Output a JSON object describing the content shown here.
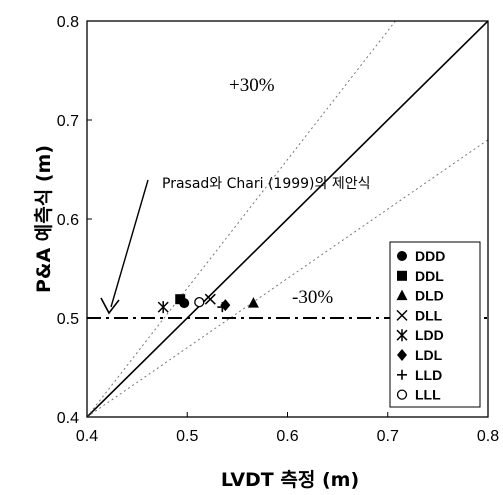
{
  "chart_data": {
    "type": "scatter",
    "xlabel": "LVDT 측정 (m)",
    "ylabel": "P&A 예측식 (m)",
    "xlim": [
      0.4,
      0.8
    ],
    "ylim": [
      0.4,
      0.8
    ],
    "x_ticks": [
      "0.4",
      "0.5",
      "0.6",
      "0.7",
      "0.8"
    ],
    "y_ticks": [
      "0.4",
      "0.5",
      "0.6",
      "0.7",
      "0.8"
    ],
    "grid": false,
    "legend_position": "lower-right",
    "series": [
      {
        "name": "DDD",
        "marker": "circle",
        "points": [
          [
            0.497,
            0.515
          ]
        ]
      },
      {
        "name": "DDL",
        "marker": "square",
        "points": [
          [
            0.493,
            0.519
          ]
        ]
      },
      {
        "name": "DLD",
        "marker": "triangle",
        "points": [
          [
            0.566,
            0.515
          ]
        ]
      },
      {
        "name": "DLL",
        "marker": "x",
        "points": [
          [
            0.523,
            0.519
          ]
        ]
      },
      {
        "name": "LDD",
        "marker": "asterisk",
        "points": [
          [
            0.476,
            0.511
          ]
        ]
      },
      {
        "name": "LDL",
        "marker": "diamond",
        "points": [
          [
            0.538,
            0.513
          ]
        ]
      },
      {
        "name": "LLD",
        "marker": "plus",
        "points": [
          [
            0.535,
            0.511
          ]
        ]
      },
      {
        "name": "LLL",
        "marker": "open-circle",
        "points": [
          [
            0.512,
            0.516
          ]
        ]
      }
    ],
    "reference_lines": [
      {
        "style": "solid",
        "slope": 1.0
      },
      {
        "style": "dotted",
        "slope": 1.3,
        "label": "+30%"
      },
      {
        "style": "dotted",
        "slope": 0.7,
        "label": "-30%"
      }
    ],
    "horizontal_line": {
      "y": 0.5,
      "style": "dash-dot"
    },
    "annotations": {
      "plus30": "+30%",
      "minus30": "-30%",
      "proposal": "Prasad와  Chari (1999)의  제안식"
    }
  }
}
